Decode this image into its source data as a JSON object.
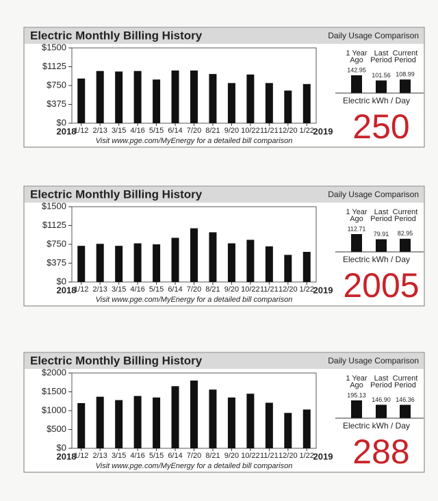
{
  "chart_data": [
    {
      "type": "bar",
      "title": "Electric Monthly Billing History",
      "categories": [
        "1/12",
        "2/13",
        "3/15",
        "4/16",
        "5/15",
        "6/14",
        "7/20",
        "8/21",
        "9/20",
        "10/22",
        "11/21",
        "12/20",
        "1/22"
      ],
      "values": [
        890,
        1040,
        1030,
        1040,
        870,
        1050,
        1050,
        980,
        800,
        970,
        800,
        650,
        780
      ],
      "color": "#111111",
      "ylim": [
        0,
        1500
      ],
      "yticks": [
        {
          "value": 0,
          "label": "$0"
        },
        {
          "value": 375,
          "label": "$375"
        },
        {
          "value": 750,
          "label": "$750"
        },
        {
          "value": 1125,
          "label": "$1125"
        },
        {
          "value": 1500,
          "label": "$1500"
        }
      ],
      "x_start_label": "2018",
      "x_end_label": "2019",
      "note": "Visit www.pge.com/MyEnergy for a detailed bill comparison"
    },
    {
      "type": "bar",
      "title": "Daily Usage Comparison",
      "categories": [
        "1 Year Ago",
        "Last Period",
        "Current Period"
      ],
      "values": [
        142.95,
        101.56,
        108.99
      ],
      "color": "#111111",
      "x_label": "Electric kWh / Day",
      "annotation": "250"
    },
    {
      "type": "bar",
      "title": "Electric Monthly Billing History",
      "categories": [
        "1/12",
        "2/13",
        "3/15",
        "4/16",
        "5/15",
        "6/14",
        "7/20",
        "8/21",
        "9/20",
        "10/22",
        "11/21",
        "12/20",
        "1/22"
      ],
      "values": [
        720,
        760,
        720,
        770,
        750,
        880,
        1070,
        990,
        770,
        840,
        710,
        540,
        600
      ],
      "color": "#111111",
      "ylim": [
        0,
        1500
      ],
      "yticks": [
        {
          "value": 0,
          "label": "$0"
        },
        {
          "value": 375,
          "label": "$375"
        },
        {
          "value": 750,
          "label": "$750"
        },
        {
          "value": 1125,
          "label": "$1125"
        },
        {
          "value": 1500,
          "label": "$1500"
        }
      ],
      "x_start_label": "2018",
      "x_end_label": "2019",
      "note": "Visit www.pge.com/MyEnergy for a detailed bill comparison"
    },
    {
      "type": "bar",
      "title": "Daily Usage Comparison",
      "categories": [
        "1 Year Ago",
        "Last Period",
        "Current Period"
      ],
      "values": [
        112.71,
        79.91,
        82.95
      ],
      "color": "#111111",
      "x_label": "Electric kWh / Day",
      "annotation": "2005"
    },
    {
      "type": "bar",
      "title": "Electric Monthly Billing History",
      "categories": [
        "1/12",
        "2/13",
        "3/15",
        "4/16",
        "5/15",
        "6/14",
        "7/20",
        "8/21",
        "9/20",
        "10/22",
        "11/21",
        "12/20",
        "1/22"
      ],
      "values": [
        1200,
        1370,
        1280,
        1390,
        1350,
        1650,
        1800,
        1560,
        1350,
        1450,
        1210,
        940,
        1030
      ],
      "color": "#111111",
      "ylim": [
        0,
        2000
      ],
      "yticks": [
        {
          "value": 0,
          "label": "$0"
        },
        {
          "value": 500,
          "label": "$500"
        },
        {
          "value": 1000,
          "label": "$1000"
        },
        {
          "value": 1500,
          "label": "$1500"
        },
        {
          "value": 2000,
          "label": "$2000"
        }
      ],
      "x_start_label": "2018",
      "x_end_label": "2019",
      "note": "Visit www.pge.com/MyEnergy for a detailed bill comparison"
    },
    {
      "type": "bar",
      "title": "Daily Usage Comparison",
      "categories": [
        "1 Year Ago",
        "Last Period",
        "Current Period"
      ],
      "values": [
        195.13,
        146.9,
        146.36
      ],
      "value_labels": [
        "195.13",
        "146.90",
        "146.36"
      ],
      "color": "#111111",
      "x_label": "Electric kWh / Day",
      "annotation": "288"
    }
  ]
}
